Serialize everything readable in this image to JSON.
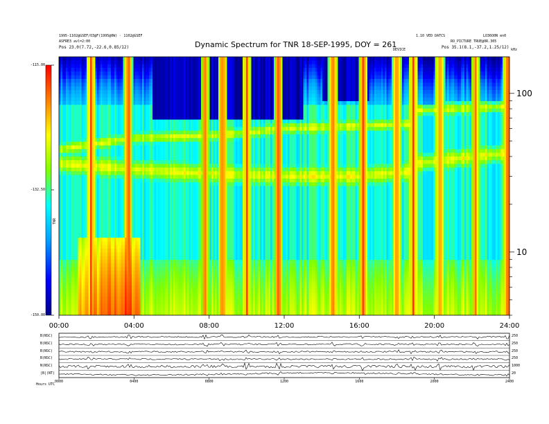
{
  "header": {
    "title": "Dynamic Spectrum for TNR 18-SEP-1995, DOY = 261",
    "info_left_1": "1995-1102@GSEF/O3@F(1995@0W) · 1102@GSEF",
    "info_left_2": "ASFRE3 avl=2:00",
    "info_left_3": "Pos  23.0(7.72,-22.6,0.85/12)",
    "info_right_1": "1.10 VED DATCS",
    "info_right_2": "LO36O0N en0",
    "info_right_3": "RO_PICTURE TRUE@0R.305",
    "info_right_4": "Pos  35.1(8.1,-37.2,1.25/12)",
    "marker_label": "DEVICE",
    "unit_top_right": "kHz"
  },
  "chart_data": [
    {
      "type": "heatmap",
      "title": "Dynamic Spectrum for TNR 18-SEP-1995, DOY = 261",
      "xlabel": "",
      "ylabel": "kHz",
      "x_ticks": [
        "00:00",
        "04:00",
        "08:00",
        "12:00",
        "16:00",
        "20:00",
        "24:00"
      ],
      "xlim": [
        0,
        24
      ],
      "y_scale": "log",
      "ylim": [
        4,
        170
      ],
      "y_ticks": [
        10,
        100
      ],
      "colorbar": {
        "label": "TNR",
        "tick_labels": [
          "-115.00",
          "-132.50",
          "-150.00"
        ],
        "range": [
          -150,
          -115
        ],
        "colors": [
          "#00008b",
          "#0000ff",
          "#00a0ff",
          "#00ffff",
          "#7fff00",
          "#ffff00",
          "#ff8000",
          "#ff0000"
        ]
      },
      "features": {
        "band_upper_khz": [
          {
            "t": 0.0,
            "f": 44
          },
          {
            "t": 4.0,
            "f": 52
          },
          {
            "t": 8.0,
            "f": 54
          },
          {
            "t": 10.0,
            "f": 56
          },
          {
            "t": 12.0,
            "f": 60
          },
          {
            "t": 16.0,
            "f": 62
          },
          {
            "t": 18.7,
            "f": 64
          },
          {
            "t": 19.0,
            "f": 78
          },
          {
            "t": 24.0,
            "f": 82
          }
        ],
        "band_lower_khz": [
          {
            "t": 0.0,
            "f": 36
          },
          {
            "t": 4.0,
            "f": 33
          },
          {
            "t": 8.0,
            "f": 31
          },
          {
            "t": 12.0,
            "f": 30
          },
          {
            "t": 16.0,
            "f": 30
          },
          {
            "t": 18.7,
            "f": 32
          },
          {
            "t": 19.0,
            "f": 36
          },
          {
            "t": 24.0,
            "f": 42
          }
        ],
        "bursts_hours": [
          1.7,
          3.7,
          7.8,
          8.7,
          10.0,
          11.7,
          14.6,
          16.2,
          18.0,
          18.9,
          20.3,
          22.2,
          23.9
        ]
      }
    },
    {
      "type": "line",
      "title": "",
      "x_ticks": [
        "0000",
        "0400",
        "0800",
        "1200",
        "1600",
        "2000",
        "2400"
      ],
      "series": [
        {
          "name": "B(NSC)",
          "right_label": "250"
        },
        {
          "name": "B(NSC)",
          "right_label": "250"
        },
        {
          "name": "B(NSC)",
          "right_label": "250"
        },
        {
          "name": "B(NSC)",
          "right_label": "250"
        },
        {
          "name": "N(NSC)",
          "right_label": "1000"
        },
        {
          "name": "|B|(NT)",
          "right_label": "20"
        }
      ],
      "footer_label": "Hours  UTC"
    }
  ]
}
